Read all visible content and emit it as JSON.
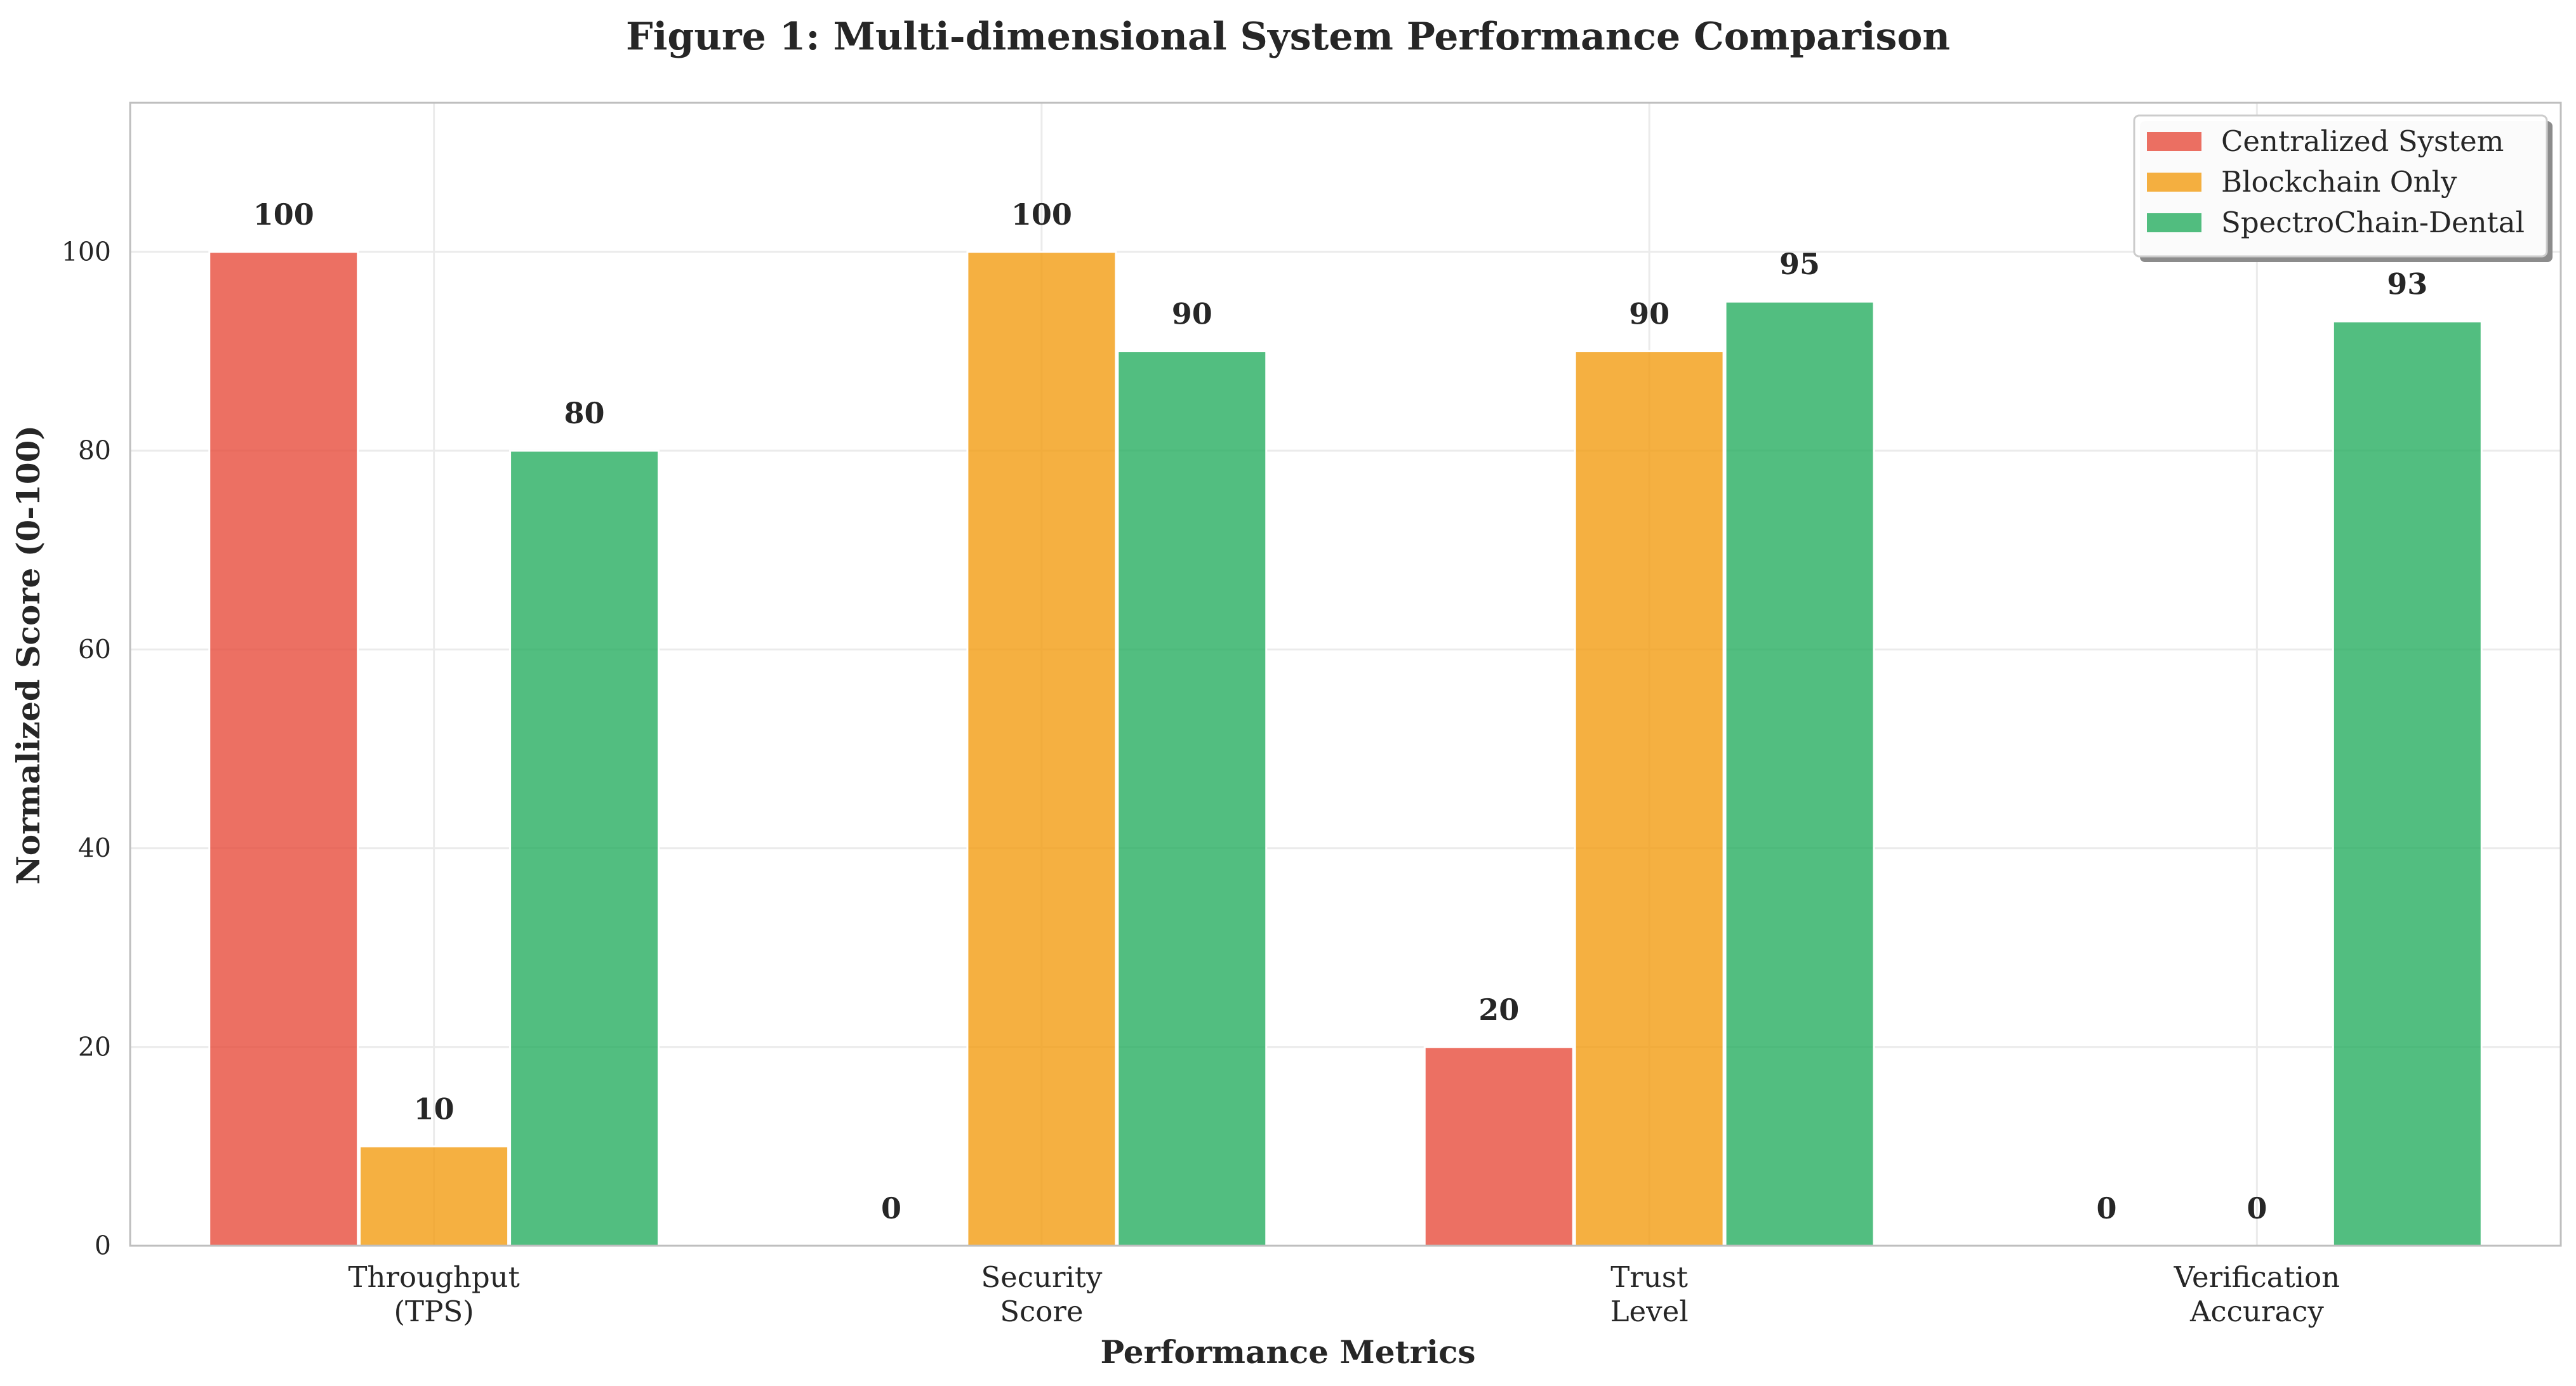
{
  "chart_data": {
    "type": "bar",
    "title": "Figure 1: Multi-dimensional System Performance Comparison",
    "xlabel": "Performance Metrics",
    "ylabel": "Normalized Score (0-100)",
    "ylim": [
      0,
      115
    ],
    "yticks": [
      0,
      20,
      40,
      60,
      80,
      100
    ],
    "grid": true,
    "legend_position": "top-right",
    "categories": [
      [
        "Throughput",
        "(TPS)"
      ],
      [
        "Security",
        "Score"
      ],
      [
        "Trust",
        "Level"
      ],
      [
        "Verification",
        "Accuracy"
      ]
    ],
    "series": [
      {
        "name": "Centralized System",
        "color": "#e74c3c",
        "values": [
          100,
          0,
          20,
          0
        ]
      },
      {
        "name": "Blockchain Only",
        "color": "#f39c12",
        "values": [
          10,
          100,
          90,
          0
        ]
      },
      {
        "name": "SpectroChain-Dental",
        "color": "#27ae60",
        "values": [
          80,
          90,
          95,
          93
        ]
      }
    ]
  }
}
